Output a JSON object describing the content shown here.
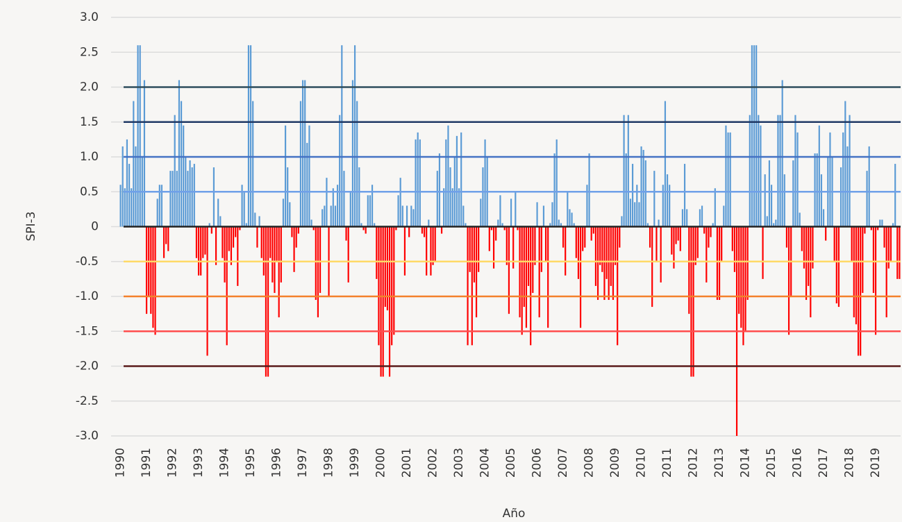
{
  "chart_data": {
    "type": "bar",
    "y_label": "SPI-3",
    "x_label": "Año",
    "positive_color": "#5b9bd5",
    "negative_color": "#ff0000",
    "ylim": [
      -3,
      3
    ],
    "yticks": [
      {
        "value": 3,
        "label": "3.0"
      },
      2.5,
      {
        "value": 2,
        "label": "2.0"
      },
      1.5,
      {
        "value": 1,
        "label": "1.0"
      },
      0.5,
      0,
      -0.5,
      {
        "value": -1,
        "label": "-1.0"
      },
      -1.5,
      {
        "value": -2,
        "label": "-2.0"
      },
      -2.5,
      {
        "value": -3,
        "label": "-3.0"
      }
    ],
    "grid": true,
    "reference_lines": [
      {
        "value": 2,
        "color": "#2e4d5c"
      },
      {
        "value": 1.5,
        "color": "#1f3864"
      },
      {
        "value": 1,
        "color": "#4472c4"
      },
      {
        "value": 0.5,
        "color": "#6fa0e8"
      },
      {
        "value": 0,
        "color": "#222222"
      },
      {
        "value": -0.5,
        "color": "#ffd966"
      },
      {
        "value": -1,
        "color": "#f4802a"
      },
      {
        "value": -1.5,
        "color": "#ff4d4d"
      },
      {
        "value": -2,
        "color": "#5a1a1a"
      }
    ],
    "categories": [
      "1990",
      null,
      null,
      null,
      null,
      null,
      null,
      null,
      null,
      null,
      null,
      null,
      "1991",
      null,
      null,
      null,
      null,
      null,
      null,
      null,
      null,
      null,
      null,
      null,
      "1992",
      null,
      null,
      null,
      null,
      null,
      null,
      null,
      null,
      null,
      null,
      null,
      "1993",
      null,
      null,
      null,
      null,
      null,
      null,
      null,
      null,
      null,
      null,
      null,
      "1994",
      null,
      null,
      null,
      null,
      null,
      null,
      null,
      null,
      null,
      null,
      null,
      "1995",
      null,
      null,
      null,
      null,
      null,
      null,
      null,
      null,
      null,
      null,
      null,
      "1996",
      null,
      null,
      null,
      null,
      null,
      null,
      null,
      null,
      null,
      null,
      null,
      "1997",
      null,
      null,
      null,
      null,
      null,
      null,
      null,
      null,
      null,
      null,
      null,
      "1998",
      null,
      null,
      null,
      null,
      null,
      null,
      null,
      null,
      null,
      null,
      null,
      "1999",
      null,
      null,
      null,
      null,
      null,
      null,
      null,
      null,
      null,
      null,
      null,
      "2000",
      null,
      null,
      null,
      null,
      null,
      null,
      null,
      null,
      null,
      null,
      null,
      "2001",
      null,
      null,
      null,
      null,
      null,
      null,
      null,
      null,
      null,
      null,
      null,
      "2002",
      null,
      null,
      null,
      null,
      null,
      null,
      null,
      null,
      null,
      null,
      null,
      "2003",
      null,
      null,
      null,
      null,
      null,
      null,
      null,
      null,
      null,
      null,
      null,
      "2004",
      null,
      null,
      null,
      null,
      null,
      null,
      null,
      null,
      null,
      null,
      null,
      "2005",
      null,
      null,
      null,
      null,
      null,
      null,
      null,
      null,
      null,
      null,
      null,
      "2006",
      null,
      null,
      null,
      null,
      null,
      null,
      null,
      null,
      null,
      null,
      null,
      "2007",
      null,
      null,
      null,
      null,
      null,
      null,
      null,
      null,
      null,
      null,
      null,
      "2008",
      null,
      null,
      null,
      null,
      null,
      null,
      null,
      null,
      null,
      null,
      null,
      "2009",
      null,
      null,
      null,
      null,
      null,
      null,
      null,
      null,
      null,
      null,
      null,
      "2010",
      null,
      null,
      null,
      null,
      null,
      null,
      null,
      null,
      null,
      null,
      null,
      "2011",
      null,
      null,
      null,
      null,
      null,
      null,
      null,
      null,
      null,
      null,
      null,
      "2012",
      null,
      null,
      null,
      null,
      null,
      null,
      null,
      null,
      null,
      null,
      null,
      "2013",
      null,
      null,
      null,
      null,
      null,
      null,
      null,
      null,
      null,
      null,
      null,
      "2014",
      null,
      null,
      null,
      null,
      null,
      null,
      null,
      null,
      null,
      null,
      null,
      "2015",
      null,
      null,
      null,
      null,
      null,
      null,
      null,
      null,
      null,
      null,
      null,
      "2016",
      null,
      null,
      null,
      null,
      null,
      null,
      null,
      null,
      null,
      null,
      null,
      "2017",
      null,
      null,
      null,
      null,
      null,
      null,
      null,
      null,
      null,
      null,
      null,
      "2018",
      null,
      null,
      null,
      null,
      null,
      null,
      null,
      null,
      null,
      null,
      null,
      "2019",
      null,
      null,
      null,
      null,
      null,
      null,
      null,
      null,
      null,
      null,
      null
    ],
    "values": [
      0.6,
      1.15,
      0.55,
      1.25,
      0.9,
      0.55,
      1.8,
      1.15,
      2.6,
      2.6,
      1.0,
      2.1,
      -1.25,
      -1.0,
      -1.25,
      -1.45,
      -1.55,
      0.4,
      0.6,
      0.6,
      -0.45,
      -0.25,
      -0.35,
      0.8,
      0.8,
      1.6,
      0.8,
      2.1,
      1.8,
      1.45,
      1.0,
      0.8,
      0.95,
      0.85,
      0.9,
      -0.45,
      -0.7,
      -0.7,
      -0.45,
      -0.4,
      -1.85,
      0.05,
      -0.1,
      0.85,
      -0.55,
      0.4,
      0.15,
      -0.45,
      -0.8,
      -1.7,
      -0.35,
      -0.55,
      -0.3,
      -0.15,
      -0.85,
      -0.05,
      0.6,
      0.5,
      0.05,
      2.6,
      2.6,
      1.8,
      0.2,
      -0.3,
      0.15,
      -0.45,
      -0.7,
      -2.15,
      -2.15,
      -0.45,
      -0.8,
      -0.95,
      -0.5,
      -1.3,
      -0.8,
      0.4,
      1.45,
      0.85,
      0.35,
      -0.15,
      -0.65,
      -0.3,
      -0.1,
      1.8,
      2.1,
      2.1,
      1.2,
      1.45,
      0.1,
      -0.05,
      -1.05,
      -1.3,
      -0.95,
      0.25,
      0.3,
      0.7,
      -1.0,
      0.3,
      0.55,
      0.3,
      0.6,
      1.6,
      2.6,
      0.8,
      -0.2,
      -0.8,
      0.5,
      2.1,
      2.6,
      1.8,
      0.85,
      0.05,
      -0.05,
      -0.1,
      0.45,
      0.45,
      0.6,
      0.05,
      -0.75,
      -1.7,
      -2.15,
      -2.15,
      -1.15,
      -1.2,
      -2.15,
      -1.7,
      -1.55,
      -0.05,
      0.45,
      0.7,
      0.3,
      -0.7,
      0.3,
      -0.15,
      0.3,
      0.25,
      1.25,
      1.35,
      1.25,
      -0.1,
      -0.15,
      -0.7,
      0.1,
      -0.7,
      -0.55,
      -0.5,
      0.8,
      1.05,
      -0.1,
      0.55,
      1.25,
      1.45,
      0.85,
      0.55,
      1.0,
      1.3,
      0.55,
      1.35,
      0.3,
      0.05,
      -1.7,
      -0.65,
      -1.7,
      -0.8,
      -1.3,
      -0.65,
      0.4,
      0.85,
      1.25,
      1.0,
      -0.35,
      -0.05,
      -0.6,
      -0.2,
      0.1,
      0.45,
      0.05,
      -0.05,
      -0.55,
      -1.25,
      0.4,
      -0.6,
      0.5,
      -0.05,
      -1.3,
      -1.55,
      -1.15,
      -1.45,
      -0.85,
      -1.7,
      -0.95,
      -0.55,
      0.35,
      -1.3,
      -0.65,
      0.3,
      -0.5,
      -1.45,
      0.05,
      0.35,
      1.05,
      1.25,
      0.1,
      0.05,
      -0.3,
      -0.7,
      0.5,
      0.25,
      0.2,
      0.05,
      -0.45,
      -0.75,
      -1.45,
      -0.35,
      -0.3,
      0.6,
      1.05,
      -0.2,
      -0.1,
      -0.85,
      -1.05,
      -0.55,
      -0.65,
      -1.05,
      -0.75,
      -1.05,
      -0.85,
      -1.05,
      -0.55,
      -1.7,
      -0.3,
      0.15,
      1.6,
      1.05,
      1.6,
      0.4,
      0.9,
      0.35,
      0.6,
      0.35,
      1.15,
      1.1,
      0.95,
      0.05,
      -0.3,
      -1.15,
      0.8,
      -0.5,
      0.1,
      -0.8,
      0.6,
      1.8,
      0.75,
      0.6,
      -0.4,
      -0.6,
      -0.25,
      -0.2,
      -0.35,
      0.25,
      0.9,
      0.25,
      -1.25,
      -2.15,
      -2.15,
      -0.55,
      -0.45,
      0.25,
      0.3,
      -0.1,
      -0.8,
      -0.3,
      -0.15,
      0.05,
      0.55,
      -1.05,
      -1.05,
      -0.5,
      0.3,
      1.45,
      1.35,
      1.35,
      -0.35,
      -0.65,
      -3.0,
      -1.25,
      -1.45,
      -1.7,
      -1.5,
      -1.05,
      1.6,
      2.6,
      2.6,
      2.6,
      1.6,
      1.45,
      -0.75,
      0.75,
      0.15,
      0.95,
      0.6,
      0.05,
      0.1,
      1.6,
      1.6,
      2.1,
      0.75,
      -0.3,
      -1.55,
      -1.0,
      0.95,
      1.6,
      1.35,
      0.2,
      -0.35,
      -0.6,
      -1.05,
      -0.85,
      -1.3,
      -0.6,
      1.05,
      1.05,
      1.45,
      0.75,
      0.25,
      -0.2,
      1.0,
      1.35,
      1.0,
      -0.5,
      -1.1,
      -1.15,
      0.85,
      1.35,
      1.8,
      1.15,
      1.6,
      -0.5,
      -1.3,
      -1.4,
      -1.85,
      -1.85,
      -0.95,
      -0.1,
      0.8,
      1.15,
      -0.05,
      -0.95,
      -1.55,
      -0.05,
      0.1,
      0.1,
      -0.3,
      -1.3,
      -0.6,
      -0.5,
      0.05,
      0.9,
      -0.75,
      -0.75
    ]
  }
}
